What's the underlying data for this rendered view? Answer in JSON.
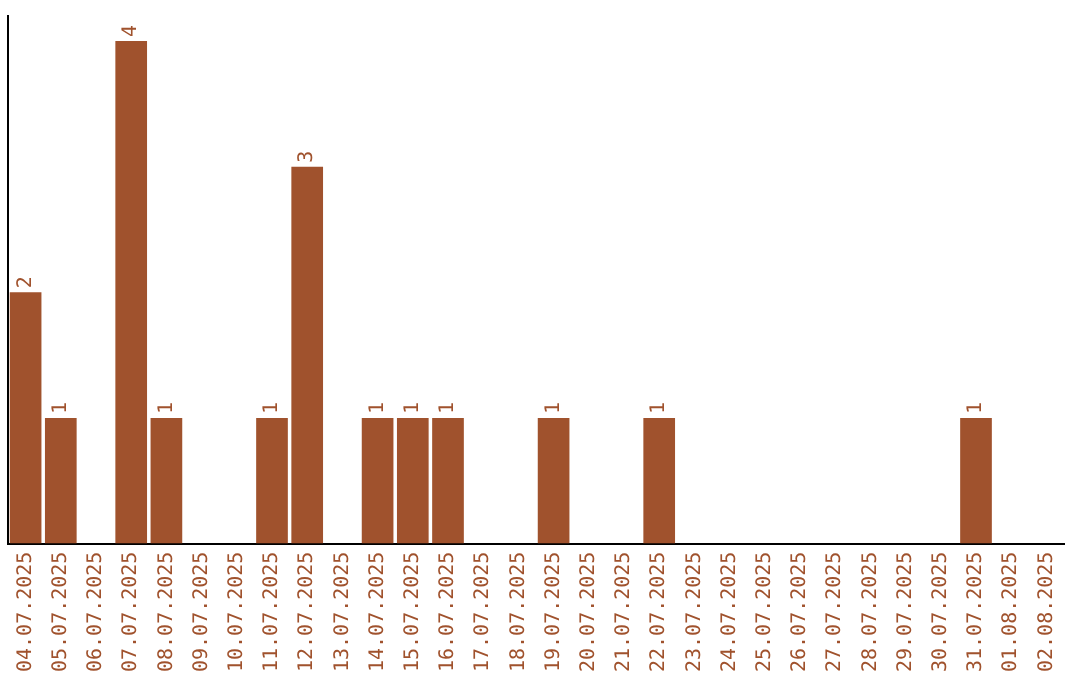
{
  "chart_data": {
    "type": "bar",
    "categories": [
      "04.07.2025",
      "05.07.2025",
      "06.07.2025",
      "07.07.2025",
      "08.07.2025",
      "09.07.2025",
      "10.07.2025",
      "11.07.2025",
      "12.07.2025",
      "13.07.2025",
      "14.07.2025",
      "15.07.2025",
      "16.07.2025",
      "17.07.2025",
      "18.07.2025",
      "19.07.2025",
      "20.07.2025",
      "21.07.2025",
      "22.07.2025",
      "23.07.2025",
      "24.07.2025",
      "25.07.2025",
      "26.07.2025",
      "27.07.2025",
      "28.07.2025",
      "29.07.2025",
      "30.07.2025",
      "31.07.2025",
      "01.08.2025",
      "02.08.2025"
    ],
    "values": [
      2,
      1,
      0,
      4,
      1,
      0,
      0,
      1,
      3,
      0,
      1,
      1,
      1,
      0,
      0,
      1,
      0,
      0,
      1,
      0,
      0,
      0,
      0,
      0,
      0,
      0,
      0,
      1,
      0,
      0
    ],
    "value_labels": [
      "2",
      "1",
      null,
      "4",
      "1",
      null,
      null,
      "1",
      "3",
      null,
      "1",
      "1",
      "1",
      null,
      null,
      "1",
      null,
      null,
      "1",
      null,
      null,
      null,
      null,
      null,
      null,
      null,
      null,
      "1",
      null,
      null
    ],
    "color": "#a0522d",
    "ylim": [
      0,
      4.2
    ],
    "tick_labels": "x",
    "grid": false,
    "legend": false
  }
}
